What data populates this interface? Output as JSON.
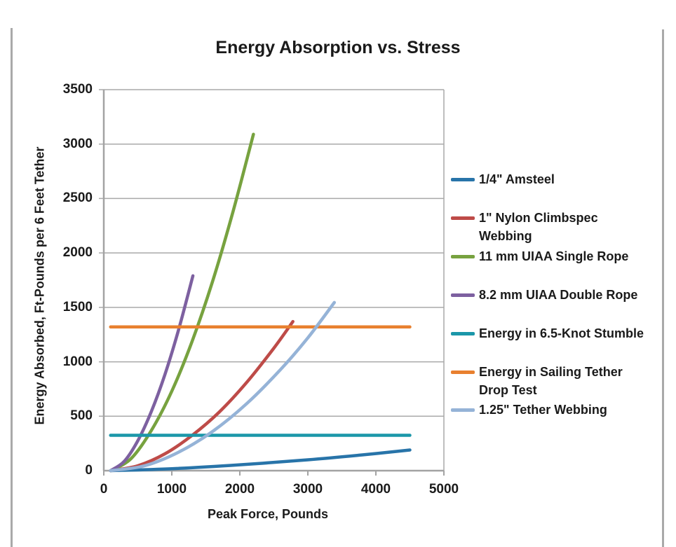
{
  "page": {
    "title": "Energy Absorption vs. Stress"
  },
  "chart_data": {
    "type": "line",
    "title": "Energy Absorption vs. Stress",
    "xlabel": "Peak Force, Pounds",
    "ylabel": "Energy Absorbed, Ft-Pounds per 6 Feet Tether",
    "xlim": [
      0,
      5000
    ],
    "ylim": [
      0,
      3500
    ],
    "x_ticks": [
      0,
      1000,
      2000,
      3000,
      4000,
      5000
    ],
    "y_ticks": [
      0,
      500,
      1000,
      1500,
      2000,
      2500,
      3000,
      3500
    ],
    "grid": "horizontal",
    "legend_position": "right",
    "axis_color": "#a3a3a3",
    "gridline_color": "#a9a9a9",
    "series": [
      {
        "name": "1/4\" Amsteel",
        "color": "#2874a9",
        "points": [
          [
            100,
            0
          ],
          [
            1000,
            18
          ],
          [
            2000,
            54
          ],
          [
            3000,
            100
          ],
          [
            3800,
            145
          ],
          [
            4500,
            190
          ]
        ]
      },
      {
        "name": "1\" Nylon Climbspec Webbing",
        "color": "#be4b48",
        "points": [
          [
            100,
            0
          ],
          [
            500,
            45
          ],
          [
            900,
            155
          ],
          [
            1300,
            325
          ],
          [
            1700,
            540
          ],
          [
            2100,
            810
          ],
          [
            2500,
            1125
          ],
          [
            2780,
            1370
          ]
        ]
      },
      {
        "name": "11 mm UIAA Single Rope",
        "color": "#77a23f",
        "points": [
          [
            100,
            0
          ],
          [
            400,
            110
          ],
          [
            700,
            370
          ],
          [
            1000,
            730
          ],
          [
            1300,
            1190
          ],
          [
            1600,
            1740
          ],
          [
            1900,
            2380
          ],
          [
            2200,
            3090
          ]
        ]
      },
      {
        "name": "8.2 mm UIAA Double Rope",
        "color": "#7d60a0",
        "points": [
          [
            100,
            0
          ],
          [
            300,
            85
          ],
          [
            500,
            275
          ],
          [
            700,
            545
          ],
          [
            900,
            885
          ],
          [
            1100,
            1295
          ],
          [
            1310,
            1790
          ]
        ]
      },
      {
        "name": "Energy in 6.5-Knot Stumble",
        "color": "#1b97a9",
        "points": [
          [
            100,
            325
          ],
          [
            4500,
            325
          ]
        ]
      },
      {
        "name": "Energy in Sailing Tether Drop Test",
        "color": "#e8802f",
        "points": [
          [
            100,
            1320
          ],
          [
            4500,
            1320
          ]
        ]
      },
      {
        "name": "1.25\" Tether Webbing",
        "color": "#95b3d7",
        "points": [
          [
            100,
            0
          ],
          [
            600,
            45
          ],
          [
            1100,
            170
          ],
          [
            1600,
            360
          ],
          [
            2100,
            615
          ],
          [
            2600,
            930
          ],
          [
            3000,
            1220
          ],
          [
            3390,
            1545
          ]
        ]
      }
    ]
  }
}
